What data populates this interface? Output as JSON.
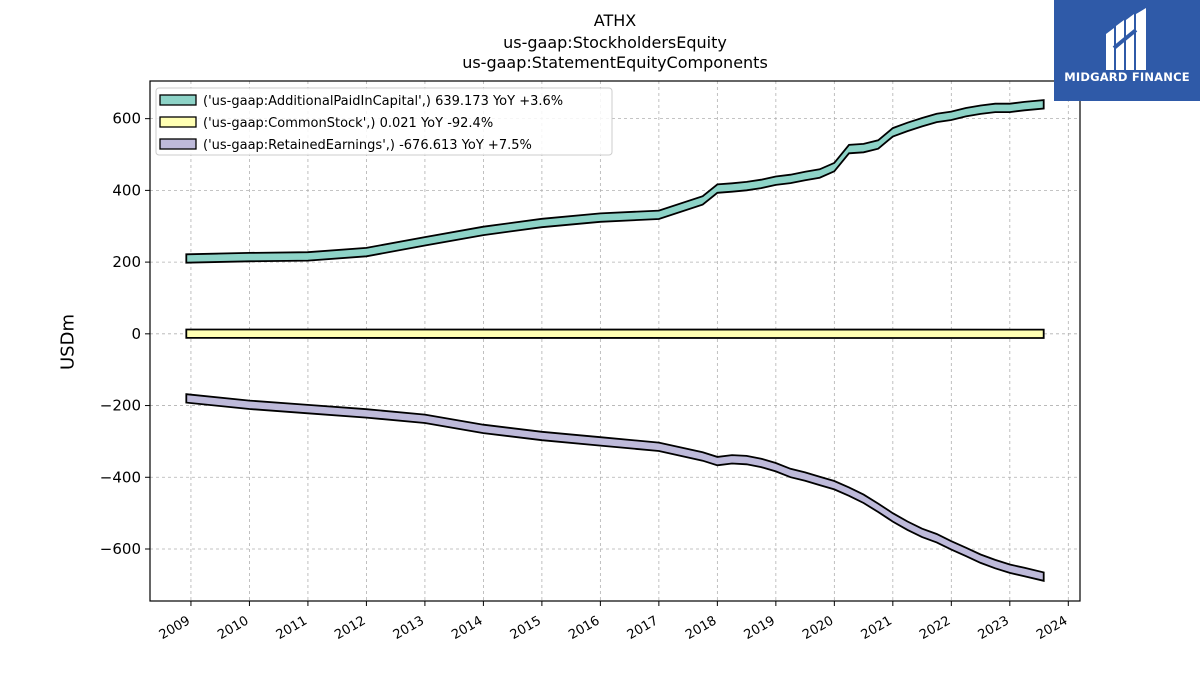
{
  "header": {
    "ticker": "ATHX",
    "line2": "us-gaap:StockholdersEquity",
    "line3": "us-gaap:StatementEquityComponents"
  },
  "logo": {
    "name": "MIDGARD FINANCE",
    "bg_color": "#2f5aa8"
  },
  "chart_data": {
    "type": "area",
    "ylabel": "USDm",
    "xlim": [
      2008.3,
      2024.2
    ],
    "ylim": [
      -745,
      705
    ],
    "yticks": [
      -600,
      -400,
      -200,
      0,
      200,
      400,
      600
    ],
    "ytick_labels": [
      "−600",
      "−400",
      "−200",
      "0",
      "200",
      "400",
      "600"
    ],
    "xticks": [
      2009,
      2010,
      2011,
      2012,
      2013,
      2014,
      2015,
      2016,
      2017,
      2018,
      2019,
      2020,
      2021,
      2022,
      2023,
      2024
    ],
    "grid": true,
    "legend_position": "upper-left",
    "series": [
      {
        "name": "('us-gaap:AdditionalPaidInCapital',) 639.173 YoY +3.6%",
        "color": "#8dd3c7",
        "x": [
          2008.92,
          2010.0,
          2011.0,
          2012.0,
          2013.0,
          2014.0,
          2015.0,
          2016.0,
          2017.0,
          2017.75,
          2018.0,
          2018.25,
          2018.5,
          2018.75,
          2019.0,
          2019.25,
          2019.5,
          2019.75,
          2020.0,
          2020.25,
          2020.5,
          2020.75,
          2021.0,
          2021.25,
          2021.5,
          2021.75,
          2022.0,
          2022.25,
          2022.5,
          2022.75,
          2023.0,
          2023.25,
          2023.58
        ],
        "y": [
          210,
          214,
          216,
          228,
          258,
          287,
          309,
          324,
          332,
          372,
          405,
          408,
          412,
          418,
          427,
          432,
          440,
          447,
          465,
          515,
          518,
          528,
          562,
          577,
          590,
          602,
          608,
          618,
          625,
          630,
          630,
          635,
          640
        ]
      },
      {
        "name": "('us-gaap:CommonStock',) 0.021 YoY -92.4%",
        "color": "#ffffb3",
        "x": [
          2008.92,
          2023.58
        ],
        "y": [
          0.3,
          0.02
        ]
      },
      {
        "name": "('us-gaap:RetainedEarnings',) -676.613 YoY +7.5%",
        "color": "#bebada",
        "x": [
          2008.92,
          2010.0,
          2011.0,
          2012.0,
          2013.0,
          2014.0,
          2015.0,
          2016.0,
          2017.0,
          2017.75,
          2018.0,
          2018.25,
          2018.5,
          2018.75,
          2019.0,
          2019.25,
          2019.5,
          2019.75,
          2020.0,
          2020.25,
          2020.5,
          2020.75,
          2021.0,
          2021.25,
          2021.5,
          2021.75,
          2022.0,
          2022.25,
          2022.5,
          2022.75,
          2023.0,
          2023.25,
          2023.58
        ],
        "y": [
          -180,
          -198,
          -210,
          -222,
          -237,
          -265,
          -285,
          -300,
          -315,
          -342,
          -355,
          -350,
          -352,
          -360,
          -372,
          -388,
          -398,
          -410,
          -422,
          -440,
          -460,
          -485,
          -512,
          -535,
          -555,
          -570,
          -590,
          -608,
          -627,
          -642,
          -655,
          -664,
          -677
        ]
      }
    ]
  }
}
